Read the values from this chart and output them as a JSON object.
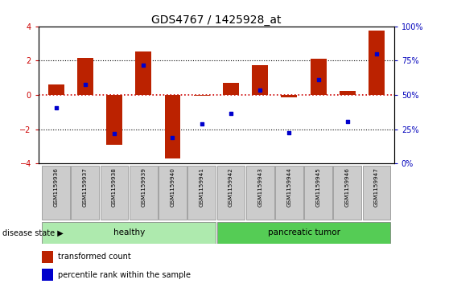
{
  "title": "GDS4767 / 1425928_at",
  "samples": [
    "GSM1159936",
    "GSM1159937",
    "GSM1159938",
    "GSM1159939",
    "GSM1159940",
    "GSM1159941",
    "GSM1159942",
    "GSM1159943",
    "GSM1159944",
    "GSM1159945",
    "GSM1159946",
    "GSM1159947"
  ],
  "bar_values": [
    0.6,
    2.15,
    -2.9,
    2.55,
    -3.7,
    -0.05,
    0.7,
    1.75,
    -0.15,
    2.1,
    0.25,
    3.75
  ],
  "dot_values_left": [
    -0.75,
    0.6,
    -2.25,
    1.75,
    -2.5,
    -1.7,
    -1.1,
    0.3,
    -2.2,
    0.9,
    -1.55,
    2.4
  ],
  "bar_color": "#BB2200",
  "dot_color": "#0000CC",
  "ylim": [
    -4,
    4
  ],
  "yticks": [
    -4,
    -2,
    0,
    2,
    4
  ],
  "y2ticks": [
    0,
    25,
    50,
    75,
    100
  ],
  "y2ticklabels": [
    "0%",
    "25%",
    "50%",
    "75%",
    "100%"
  ],
  "dotted_lines": [
    -2,
    2
  ],
  "group_healthy_label": "healthy",
  "group_tumor_label": "pancreatic tumor",
  "group_healthy_color": "#AEEAAE",
  "group_tumor_color": "#55CC55",
  "disease_state_label": "disease state",
  "legend_bar_label": "transformed count",
  "legend_dot_label": "percentile rank within the sample",
  "title_fontsize": 10,
  "tick_fontsize": 7,
  "bar_width": 0.55
}
